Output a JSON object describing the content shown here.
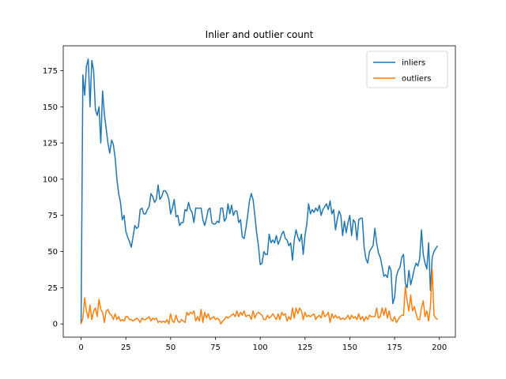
{
  "chart_data": {
    "type": "line",
    "title": "Inlier and outlier count",
    "xlabel": "",
    "ylabel": "",
    "xlim": [
      -9.95,
      208.95
    ],
    "ylim": [
      -9.15,
      192.15
    ],
    "xticks": [
      0,
      25,
      50,
      75,
      100,
      125,
      150,
      175,
      200
    ],
    "yticks": [
      0,
      25,
      50,
      75,
      100,
      125,
      150,
      175
    ],
    "grid": false,
    "legend_position": "upper right",
    "series": [
      {
        "name": "inliers",
        "color": "#1f77b4",
        "x": [
          0,
          1,
          2,
          3,
          4,
          5,
          6,
          7,
          8,
          9,
          10,
          11,
          12,
          13,
          14,
          15,
          16,
          17,
          18,
          19,
          20,
          21,
          22,
          23,
          24,
          25,
          26,
          27,
          28,
          29,
          30,
          31,
          32,
          33,
          34,
          35,
          36,
          37,
          38,
          39,
          40,
          41,
          42,
          43,
          44,
          45,
          46,
          47,
          48,
          49,
          50,
          51,
          52,
          53,
          54,
          55,
          56,
          57,
          58,
          59,
          60,
          61,
          62,
          63,
          64,
          65,
          66,
          67,
          68,
          69,
          70,
          71,
          72,
          73,
          74,
          75,
          76,
          77,
          78,
          79,
          80,
          81,
          82,
          83,
          84,
          85,
          86,
          87,
          88,
          89,
          90,
          91,
          92,
          93,
          94,
          95,
          96,
          97,
          98,
          99,
          100,
          101,
          102,
          103,
          104,
          105,
          106,
          107,
          108,
          109,
          110,
          111,
          112,
          113,
          114,
          115,
          116,
          117,
          118,
          119,
          120,
          121,
          122,
          123,
          124,
          125,
          126,
          127,
          128,
          129,
          130,
          131,
          132,
          133,
          134,
          135,
          136,
          137,
          138,
          139,
          140,
          141,
          142,
          143,
          144,
          145,
          146,
          147,
          148,
          149,
          150,
          151,
          152,
          153,
          154,
          155,
          156,
          157,
          158,
          159,
          160,
          161,
          162,
          163,
          164,
          165,
          166,
          167,
          168,
          169,
          170,
          171,
          172,
          173,
          174,
          175,
          176,
          177,
          178,
          179,
          180,
          181,
          182,
          183,
          184,
          185,
          186,
          187,
          188,
          189,
          190,
          191,
          192,
          193,
          194,
          195,
          196,
          197,
          198,
          199
        ],
        "values": [
          0,
          172,
          158,
          178,
          183,
          150,
          182,
          175,
          148,
          144,
          150,
          125,
          161,
          145,
          135,
          125,
          118,
          127,
          124,
          115,
          100,
          90,
          84,
          72,
          75,
          64,
          60,
          57,
          53,
          60,
          68,
          66,
          67,
          79,
          80,
          76,
          76,
          79,
          81,
          90,
          88,
          84,
          86,
          96,
          86,
          88,
          92,
          92,
          90,
          86,
          76,
          80,
          86,
          74,
          75,
          68,
          70,
          70,
          79,
          78,
          84,
          79,
          77,
          70,
          80,
          80,
          80,
          80,
          72,
          68,
          73,
          79,
          80,
          70,
          69,
          69,
          71,
          70,
          80,
          80,
          71,
          73,
          83,
          76,
          82,
          75,
          78,
          78,
          70,
          72,
          60,
          59,
          66,
          75,
          85,
          90,
          86,
          75,
          63,
          54,
          41,
          42,
          50,
          48,
          48,
          62,
          56,
          58,
          56,
          61,
          55,
          58,
          62,
          64,
          59,
          58,
          54,
          56,
          44,
          58,
          65,
          60,
          57,
          62,
          48,
          61,
          69,
          83,
          76,
          79,
          77,
          80,
          78,
          82,
          75,
          79,
          81,
          83,
          79,
          85,
          76,
          79,
          65,
          72,
          78,
          75,
          61,
          71,
          63,
          70,
          75,
          61,
          72,
          70,
          58,
          72,
          73,
          73,
          53,
          45,
          42,
          50,
          52,
          54,
          66,
          56,
          49,
          46,
          40,
          33,
          34,
          32,
          40,
          37,
          14,
          18,
          33,
          37,
          39,
          46,
          48,
          28,
          25,
          37,
          27,
          32,
          38,
          42,
          40,
          45,
          65,
          48,
          42,
          38,
          56,
          23,
          46,
          50,
          52,
          54
        ]
      },
      {
        "name": "outliers",
        "color": "#ff7f0e",
        "x": [
          0,
          1,
          2,
          3,
          4,
          5,
          6,
          7,
          8,
          9,
          10,
          11,
          12,
          13,
          14,
          15,
          16,
          17,
          18,
          19,
          20,
          21,
          22,
          23,
          24,
          25,
          26,
          27,
          28,
          29,
          30,
          31,
          32,
          33,
          34,
          35,
          36,
          37,
          38,
          39,
          40,
          41,
          42,
          43,
          44,
          45,
          46,
          47,
          48,
          49,
          50,
          51,
          52,
          53,
          54,
          55,
          56,
          57,
          58,
          59,
          60,
          61,
          62,
          63,
          64,
          65,
          66,
          67,
          68,
          69,
          70,
          71,
          72,
          73,
          74,
          75,
          76,
          77,
          78,
          79,
          80,
          81,
          82,
          83,
          84,
          85,
          86,
          87,
          88,
          89,
          90,
          91,
          92,
          93,
          94,
          95,
          96,
          97,
          98,
          99,
          100,
          101,
          102,
          103,
          104,
          105,
          106,
          107,
          108,
          109,
          110,
          111,
          112,
          113,
          114,
          115,
          116,
          117,
          118,
          119,
          120,
          121,
          122,
          123,
          124,
          125,
          126,
          127,
          128,
          129,
          130,
          131,
          132,
          133,
          134,
          135,
          136,
          137,
          138,
          139,
          140,
          141,
          142,
          143,
          144,
          145,
          146,
          147,
          148,
          149,
          150,
          151,
          152,
          153,
          154,
          155,
          156,
          157,
          158,
          159,
          160,
          161,
          162,
          163,
          164,
          165,
          166,
          167,
          168,
          169,
          170,
          171,
          172,
          173,
          174,
          175,
          176,
          177,
          178,
          179,
          180,
          181,
          182,
          183,
          184,
          185,
          186,
          187,
          188,
          189,
          190,
          191,
          192,
          193,
          194,
          195,
          196,
          197,
          198,
          199
        ],
        "values": [
          0,
          4,
          18,
          9,
          4,
          13,
          3,
          9,
          11,
          5,
          17,
          10,
          8,
          1,
          9,
          10,
          7,
          6,
          3,
          7,
          3,
          5,
          2,
          3,
          2,
          5,
          5,
          3,
          3,
          2,
          3,
          4,
          3,
          1,
          4,
          3,
          3,
          4,
          5,
          2,
          4,
          3,
          4,
          1,
          2,
          1,
          2,
          1,
          3,
          0,
          7,
          2,
          1,
          6,
          2,
          1,
          3,
          2,
          1,
          8,
          6,
          8,
          7,
          9,
          2,
          5,
          2,
          10,
          1,
          8,
          4,
          7,
          3,
          4,
          5,
          3,
          4,
          3,
          0,
          2,
          3,
          5,
          4,
          5,
          6,
          7,
          5,
          9,
          5,
          8,
          6,
          9,
          5,
          6,
          6,
          3,
          9,
          4,
          7,
          8,
          7,
          6,
          3,
          3,
          6,
          4,
          5,
          7,
          5,
          3,
          7,
          3,
          8,
          6,
          7,
          2,
          5,
          3,
          11,
          4,
          11,
          7,
          11,
          9,
          3,
          8,
          5,
          6,
          5,
          6,
          7,
          3,
          5,
          6,
          4,
          9,
          5,
          6,
          8,
          1,
          7,
          4,
          6,
          4,
          5,
          3,
          4,
          3,
          4,
          6,
          3,
          6,
          4,
          5,
          3,
          7,
          3,
          5,
          2,
          5,
          3,
          6,
          5,
          5,
          5,
          11,
          4,
          5,
          11,
          6,
          11,
          4,
          9,
          3,
          2,
          5,
          1,
          3,
          5,
          6,
          6,
          26,
          16,
          9,
          20,
          9,
          12,
          7,
          3,
          3,
          11,
          16,
          5,
          9,
          2,
          12,
          38,
          6,
          4,
          3
        ]
      }
    ]
  }
}
